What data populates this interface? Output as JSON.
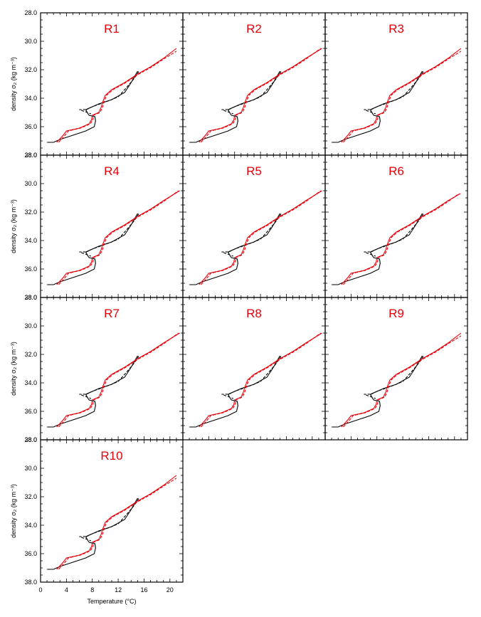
{
  "figure": {
    "ylabel": "density σ₂ (kg m⁻³)",
    "xlabel": "Temperature (°C)",
    "y_tick_labels": [
      "28.0",
      "30.0",
      "32.0",
      "34.0",
      "36.0",
      "38.0"
    ],
    "x_tick_labels": [
      "0",
      "4",
      "8",
      "12",
      "16",
      "20"
    ],
    "title_color": "#e8000b",
    "colors": {
      "observed_a": "#000000",
      "observed_b": "#000000",
      "model_a": "#e8000b",
      "model_b": "#e8000b"
    }
  },
  "chart_data": {
    "type": "line",
    "xlabel": "Temperature (°C)",
    "ylabel": "density σ₂ (kg m⁻³)",
    "xlim": [
      0,
      22
    ],
    "ylim": [
      38,
      28
    ],
    "x_ticks": [
      0,
      4,
      8,
      12,
      16,
      20
    ],
    "y_ticks": [
      28,
      30,
      32,
      34,
      36,
      38
    ],
    "y_reversed": true,
    "panels": [
      {
        "title": "R1",
        "model_end": [
          21.0,
          30.5
        ],
        "model_end_b": [
          21.0,
          30.7
        ]
      },
      {
        "title": "R2",
        "model_end": [
          21.5,
          30.5
        ],
        "model_end_b": [
          21.3,
          30.5
        ]
      },
      {
        "title": "R3",
        "model_end": [
          21.0,
          30.5
        ],
        "model_end_b": [
          21.0,
          30.7
        ]
      },
      {
        "title": "R4",
        "model_end": [
          21.5,
          30.5
        ],
        "model_end_b": [
          21.3,
          30.5
        ]
      },
      {
        "title": "R5",
        "model_end": [
          21.5,
          30.5
        ],
        "model_end_b": [
          21.3,
          30.5
        ]
      },
      {
        "title": "R6",
        "model_end": [
          20.9,
          30.7
        ],
        "model_end_b": [
          20.7,
          30.7
        ]
      },
      {
        "title": "R7",
        "model_end": [
          21.5,
          30.5
        ],
        "model_end_b": [
          21.3,
          30.5
        ]
      },
      {
        "title": "R8",
        "model_end": [
          21.5,
          30.5
        ],
        "model_end_b": [
          21.3,
          30.5
        ]
      },
      {
        "title": "R9",
        "model_end": [
          21.0,
          30.5
        ],
        "model_end_b": [
          21.0,
          30.7
        ]
      },
      {
        "title": "R10",
        "model_end": [
          21.0,
          30.5
        ],
        "model_end_b": [
          21.0,
          30.7
        ]
      }
    ],
    "series": [
      {
        "style": "solid",
        "color": "#000000",
        "points": [
          [
            1.0,
            37.1
          ],
          [
            2.0,
            37.1
          ],
          [
            3.0,
            36.9
          ],
          [
            5.0,
            36.6
          ],
          [
            7.0,
            36.3
          ],
          [
            8.3,
            36.0
          ],
          [
            8.5,
            35.6
          ],
          [
            8.4,
            35.3
          ],
          [
            7.5,
            35.2
          ],
          [
            7.2,
            35.0
          ],
          [
            7.0,
            34.8
          ],
          [
            9.0,
            34.4
          ],
          [
            11.0,
            34.1
          ],
          [
            13.0,
            33.6
          ],
          [
            14.0,
            32.9
          ],
          [
            15.0,
            32.1
          ]
        ]
      },
      {
        "style": "dashed",
        "color": "#000000",
        "points": [
          [
            7.1,
            34.8
          ],
          [
            8.0,
            34.6
          ],
          [
            11.0,
            34.1
          ],
          [
            12.0,
            33.9
          ],
          [
            13.0,
            33.4
          ],
          [
            14.5,
            32.6
          ],
          [
            15.2,
            32.1
          ]
        ]
      },
      {
        "style": "solid",
        "color": "#e8000b",
        "points": [
          [
            2.5,
            37.1
          ],
          [
            3.5,
            36.6
          ],
          [
            4.0,
            36.3
          ],
          [
            6.0,
            36.1
          ],
          [
            7.5,
            35.8
          ],
          [
            7.9,
            35.5
          ],
          [
            8.0,
            35.2
          ],
          [
            9.0,
            35.0
          ],
          [
            9.4,
            34.6
          ],
          [
            9.5,
            34.4
          ],
          [
            10.0,
            33.8
          ],
          [
            11.0,
            33.4
          ],
          [
            13.0,
            32.9
          ],
          [
            15.0,
            32.3
          ],
          [
            17.0,
            31.8
          ],
          [
            19.0,
            31.2
          ]
        ]
      },
      {
        "style": "dashed",
        "color": "#e8000b",
        "points": [
          [
            2.8,
            37.1
          ],
          [
            3.8,
            36.6
          ],
          [
            4.3,
            36.3
          ],
          [
            6.2,
            36.1
          ],
          [
            7.7,
            35.8
          ],
          [
            8.1,
            35.5
          ],
          [
            8.2,
            35.2
          ],
          [
            9.2,
            35.0
          ],
          [
            9.6,
            34.6
          ],
          [
            9.7,
            34.4
          ],
          [
            10.2,
            33.8
          ],
          [
            11.2,
            33.4
          ],
          [
            13.2,
            32.9
          ],
          [
            15.2,
            32.3
          ],
          [
            17.2,
            31.8
          ],
          [
            19.2,
            31.2
          ]
        ]
      },
      {
        "style": "dashed",
        "color": "#000000",
        "role": "kink",
        "points": [
          [
            7.0,
            34.8
          ],
          [
            6.0,
            34.8
          ],
          [
            7.2,
            35.0
          ],
          [
            7.8,
            35.1
          ]
        ]
      }
    ]
  }
}
